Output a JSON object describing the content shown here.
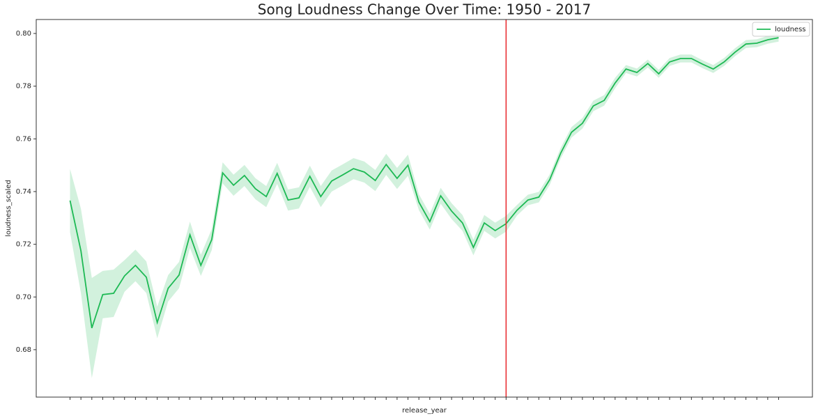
{
  "chart_data": {
    "type": "line",
    "title": "Song Loudness Change Over Time: 1950 - 2017",
    "xlabel": "release_year",
    "ylabel": "loudness_scaled",
    "categories": [
      null,
      null,
      null,
      null,
      null,
      null,
      null,
      null,
      null,
      null,
      null,
      null,
      null,
      null,
      null,
      null,
      null,
      null,
      null,
      null,
      null,
      null,
      null,
      null,
      null,
      null,
      null,
      null,
      null,
      null,
      null,
      null,
      null,
      null,
      null,
      null,
      null,
      null,
      null,
      null,
      null,
      null,
      null,
      null,
      null,
      null,
      null,
      null,
      null,
      null,
      null,
      null,
      null,
      null,
      null,
      null,
      null,
      null,
      null,
      null,
      null,
      null,
      null,
      null,
      null,
      null
    ],
    "series": [
      {
        "name": "loudness",
        "color": "#1db954",
        "values": [
          0.7366,
          0.7175,
          0.6882,
          0.7009,
          0.7014,
          0.708,
          0.712,
          0.7075,
          0.6903,
          0.7033,
          0.7083,
          0.7236,
          0.712,
          0.7218,
          0.7471,
          0.7424,
          0.7461,
          0.7411,
          0.7381,
          0.7469,
          0.7368,
          0.7376,
          0.7458,
          0.7381,
          0.744,
          0.7463,
          0.7487,
          0.7474,
          0.7442,
          0.7503,
          0.745,
          0.75,
          0.736,
          0.7286,
          0.7384,
          0.7326,
          0.7281,
          0.7188,
          0.7281,
          0.7252,
          0.7278,
          0.7329,
          0.7368,
          0.7379,
          0.7445,
          0.7545,
          0.7625,
          0.7659,
          0.7725,
          0.7746,
          0.7812,
          0.7865,
          0.7852,
          0.7886,
          0.7847,
          0.7892,
          0.7905,
          0.7905,
          0.7884,
          0.7865,
          0.7892,
          0.7929,
          0.796,
          0.7963,
          0.7976,
          0.7984
        ],
        "errors": [
          0.012,
          0.016,
          0.019,
          0.009,
          0.009,
          0.006,
          0.006,
          0.006,
          0.006,
          0.005,
          0.005,
          0.005,
          0.004,
          0.004,
          0.004,
          0.004,
          0.004,
          0.004,
          0.004,
          0.004,
          0.004,
          0.004,
          0.004,
          0.004,
          0.004,
          0.004,
          0.004,
          0.004,
          0.004,
          0.004,
          0.004,
          0.004,
          0.003,
          0.003,
          0.003,
          0.003,
          0.003,
          0.003,
          0.003,
          0.003,
          0.003,
          0.002,
          0.002,
          0.002,
          0.002,
          0.002,
          0.002,
          0.002,
          0.002,
          0.002,
          0.002,
          0.0015,
          0.0015,
          0.0015,
          0.0015,
          0.0015,
          0.0015,
          0.0015,
          0.0015,
          0.0015,
          0.0015,
          0.0015,
          0.0015,
          0.0015,
          0.0015,
          0.0015
        ]
      }
    ],
    "vline": {
      "x": 40,
      "color": "#e8262a"
    },
    "xlim": [
      -3.1,
      68.1
    ],
    "ylim": [
      0.662,
      0.8053
    ],
    "yticks": [
      0.68,
      {
        "value": 0.7,
        "label": "0.70"
      },
      0.72,
      0.74,
      0.76,
      0.78,
      {
        "value": 0.8,
        "label": "0.80"
      }
    ],
    "legend": "upper right"
  }
}
